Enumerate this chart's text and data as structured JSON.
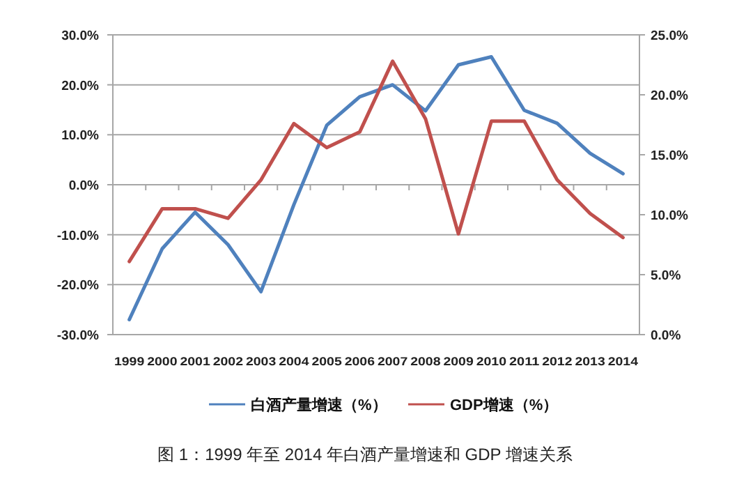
{
  "chart_data": {
    "type": "line",
    "categories": [
      "1999",
      "2000",
      "2001",
      "2002",
      "2003",
      "2004",
      "2005",
      "2006",
      "2007",
      "2008",
      "2009",
      "2010",
      "2011",
      "2012",
      "2013",
      "2014"
    ],
    "series": [
      {
        "name": "白酒产量增速（%）",
        "color": "#4f81bd",
        "values": [
          -27.0,
          -12.8,
          -5.5,
          -12.0,
          -21.4,
          -4.0,
          11.9,
          17.6,
          20.0,
          14.8,
          24.0,
          25.6,
          14.9,
          12.3,
          6.3,
          2.2
        ]
      },
      {
        "name": "GDP增速（%）",
        "color": "#c0504d",
        "axis": "y2",
        "values": [
          6.1,
          10.5,
          10.5,
          9.7,
          12.9,
          17.6,
          15.6,
          16.9,
          22.8,
          18.0,
          8.4,
          17.8,
          17.8,
          12.9,
          10.1,
          8.1
        ]
      }
    ],
    "ylim": [
      -30,
      30
    ],
    "yticks": [
      {
        "value": -30,
        "label": "-30.0%"
      },
      {
        "value": -20,
        "label": "-20.0%"
      },
      {
        "value": -10,
        "label": "-10.0%"
      },
      {
        "value": 0,
        "label": "0.0%"
      },
      {
        "value": 10,
        "label": "10.0%"
      },
      {
        "value": 20,
        "label": "20.0%"
      },
      {
        "value": 30,
        "label": "30.0%"
      }
    ],
    "y2lim": [
      0,
      25
    ],
    "y2ticks": [
      {
        "value": 0,
        "label": "0.0%"
      },
      {
        "value": 5,
        "label": "5.0%"
      },
      {
        "value": 10,
        "label": "10.0%"
      },
      {
        "value": 15,
        "label": "15.0%"
      },
      {
        "value": 20,
        "label": "20.0%"
      },
      {
        "value": 25,
        "label": "25.0%"
      }
    ],
    "grid": "y",
    "legend": "bottom",
    "marker": "none",
    "line_style": "solid",
    "annotations": [
      "图 1：1999 年至 2014 年白酒产量增速和 GDP 增速关系"
    ]
  }
}
